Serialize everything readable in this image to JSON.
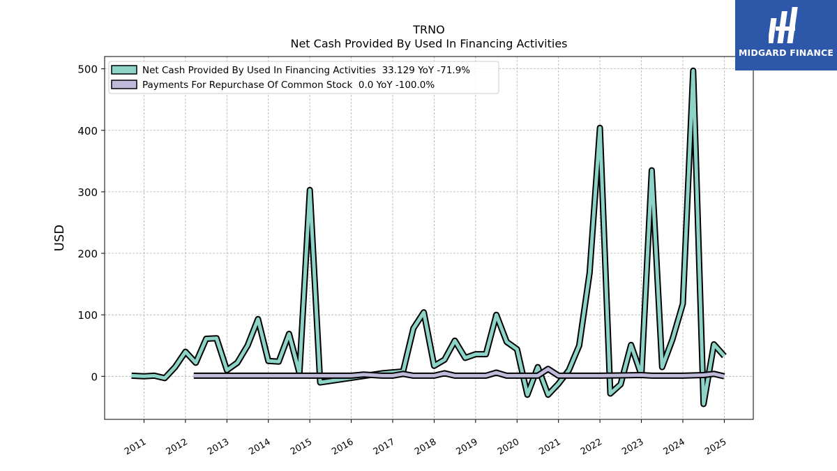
{
  "chart_data": {
    "type": "line",
    "title": "TRNO",
    "subtitle": "Net Cash Provided By Used In Financing Activities",
    "ylabel": "USD",
    "xlabel": "",
    "ylim": [
      -70,
      520
    ],
    "xlim": [
      2010.05,
      2025.7
    ],
    "yticks": [
      0,
      100,
      200,
      300,
      400,
      500
    ],
    "xtick_labels": [
      "2011",
      "2012",
      "2013",
      "2014",
      "2015",
      "2016",
      "2017",
      "2018",
      "2019",
      "2020",
      "2021",
      "2022",
      "2023",
      "2024",
      "2025"
    ],
    "grid": true,
    "legend_position": "top-left",
    "series": [
      {
        "name": "Net Cash Provided By Used In Financing Activities  33.129 YoY -71.9%",
        "color": "#8dd3c7",
        "points": [
          [
            2010.7,
            1
          ],
          [
            2011.0,
            0
          ],
          [
            2011.25,
            1
          ],
          [
            2011.5,
            -3
          ],
          [
            2011.75,
            15
          ],
          [
            2012.0,
            40
          ],
          [
            2012.25,
            22
          ],
          [
            2012.5,
            61
          ],
          [
            2012.75,
            62
          ],
          [
            2013.0,
            10
          ],
          [
            2013.25,
            22
          ],
          [
            2013.5,
            50
          ],
          [
            2013.75,
            93
          ],
          [
            2014.0,
            25
          ],
          [
            2014.25,
            24
          ],
          [
            2014.5,
            69
          ],
          [
            2014.75,
            5
          ],
          [
            2015.0,
            303
          ],
          [
            2015.25,
            -10
          ],
          [
            2016.75,
            5
          ],
          [
            2017.25,
            8
          ],
          [
            2017.5,
            78
          ],
          [
            2017.75,
            104
          ],
          [
            2018.0,
            17
          ],
          [
            2018.25,
            27
          ],
          [
            2018.5,
            58
          ],
          [
            2018.75,
            30
          ],
          [
            2019.0,
            36
          ],
          [
            2019.25,
            36
          ],
          [
            2019.5,
            100
          ],
          [
            2019.75,
            56
          ],
          [
            2020.0,
            44
          ],
          [
            2020.25,
            -30
          ],
          [
            2020.5,
            15
          ],
          [
            2020.75,
            -30
          ],
          [
            2021.0,
            -12
          ],
          [
            2021.25,
            10
          ],
          [
            2021.5,
            50
          ],
          [
            2021.75,
            168
          ],
          [
            2022.0,
            404
          ],
          [
            2022.25,
            -28
          ],
          [
            2022.5,
            -13
          ],
          [
            2022.75,
            51
          ],
          [
            2023.0,
            2
          ],
          [
            2023.25,
            335
          ],
          [
            2023.5,
            15
          ],
          [
            2023.75,
            60
          ],
          [
            2024.0,
            118
          ],
          [
            2024.25,
            497
          ],
          [
            2024.5,
            -45
          ],
          [
            2024.75,
            52
          ],
          [
            2025.0,
            33
          ]
        ]
      },
      {
        "name": "Payments For Repurchase Of Common Stock  0.0 YoY -100.0%",
        "color": "#bebada",
        "points": [
          [
            2012.2,
            1
          ],
          [
            2013.0,
            1
          ],
          [
            2014.0,
            1
          ],
          [
            2015.0,
            1
          ],
          [
            2016.0,
            1
          ],
          [
            2016.3,
            3
          ],
          [
            2016.75,
            1
          ],
          [
            2017.0,
            1
          ],
          [
            2017.25,
            4
          ],
          [
            2017.5,
            1
          ],
          [
            2018.0,
            1
          ],
          [
            2018.25,
            5
          ],
          [
            2018.5,
            1
          ],
          [
            2019.25,
            1
          ],
          [
            2019.5,
            6
          ],
          [
            2019.75,
            1
          ],
          [
            2020.5,
            1
          ],
          [
            2020.75,
            12
          ],
          [
            2021.0,
            1
          ],
          [
            2021.5,
            1
          ],
          [
            2022.0,
            1
          ],
          [
            2023.0,
            2
          ],
          [
            2023.25,
            1
          ],
          [
            2023.5,
            1
          ],
          [
            2024.0,
            1
          ],
          [
            2024.5,
            2
          ],
          [
            2024.75,
            4
          ],
          [
            2025.0,
            0
          ]
        ]
      }
    ]
  },
  "logo": {
    "text": "MIDGARD FINANCE",
    "background": "#2d57a8"
  }
}
